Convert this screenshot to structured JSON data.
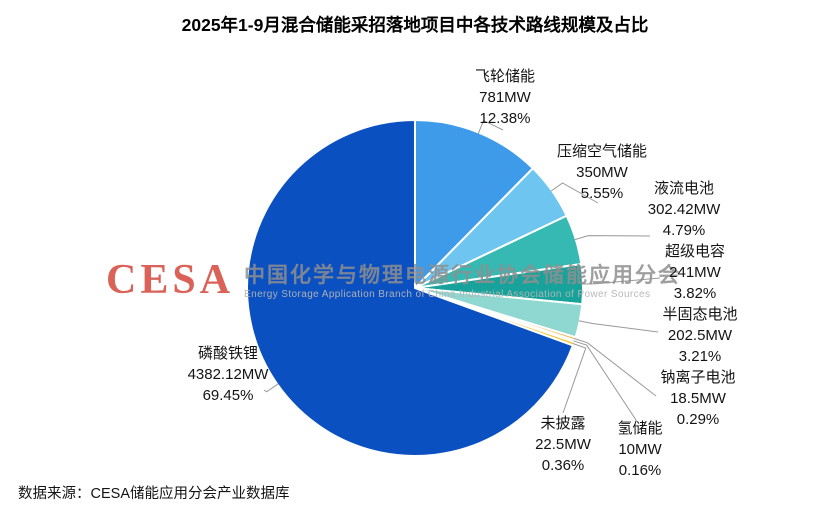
{
  "title": "2025年1-9月混合储能采招落地项目中各技术路线规模及占比",
  "source": "数据来源：CESA储能应用分会产业数据库",
  "watermark": {
    "logo": "CESA",
    "cn": "中国化学与物理电源行业协会储能应用分会",
    "en": "Energy Storage Application Branch of China Industrial Association of Power Sources",
    "logo_color": "#d23b2f"
  },
  "chart_data": {
    "type": "pie",
    "title": "2025年1-9月混合储能采招落地项目中各技术路线规模及占比",
    "unit": "MW",
    "direction": "clockwise",
    "start_angle": "top",
    "legend": "none",
    "slices": [
      {
        "name": "飞轮储能",
        "value": 781,
        "value_label": "781MW",
        "percent": 12.38,
        "percent_label": "12.38%",
        "color": "#3d9be9"
      },
      {
        "name": "压缩空气储能",
        "value": 350,
        "value_label": "350MW",
        "percent": 5.55,
        "percent_label": "5.55%",
        "color": "#6ec6f0"
      },
      {
        "name": "液流电池",
        "value": 302.42,
        "value_label": "302.42MW",
        "percent": 4.79,
        "percent_label": "4.79%",
        "color": "#35b9b2"
      },
      {
        "name": "超级电容",
        "value": 241,
        "value_label": "241MW",
        "percent": 3.82,
        "percent_label": "3.82%",
        "color": "#17a39b"
      },
      {
        "name": "半固态电池",
        "value": 202.5,
        "value_label": "202.5MW",
        "percent": 3.21,
        "percent_label": "3.21%",
        "color": "#8fd8d2"
      },
      {
        "name": "钠离子电池",
        "value": 18.5,
        "value_label": "18.5MW",
        "percent": 0.29,
        "percent_label": "0.29%",
        "color": "#f5a83a"
      },
      {
        "name": "氢储能",
        "value": 10,
        "value_label": "10MW",
        "percent": 0.16,
        "percent_label": "0.16%",
        "color": "#e4732e"
      },
      {
        "name": "未披露",
        "value": 22.5,
        "value_label": "22.5MW",
        "percent": 0.36,
        "percent_label": "0.36%",
        "color": "#f6c842"
      },
      {
        "name": "磷酸铁锂",
        "value": 4382.12,
        "value_label": "4382.12MW",
        "percent": 69.45,
        "percent_label": "69.45%",
        "color": "#0b50c0"
      }
    ]
  }
}
